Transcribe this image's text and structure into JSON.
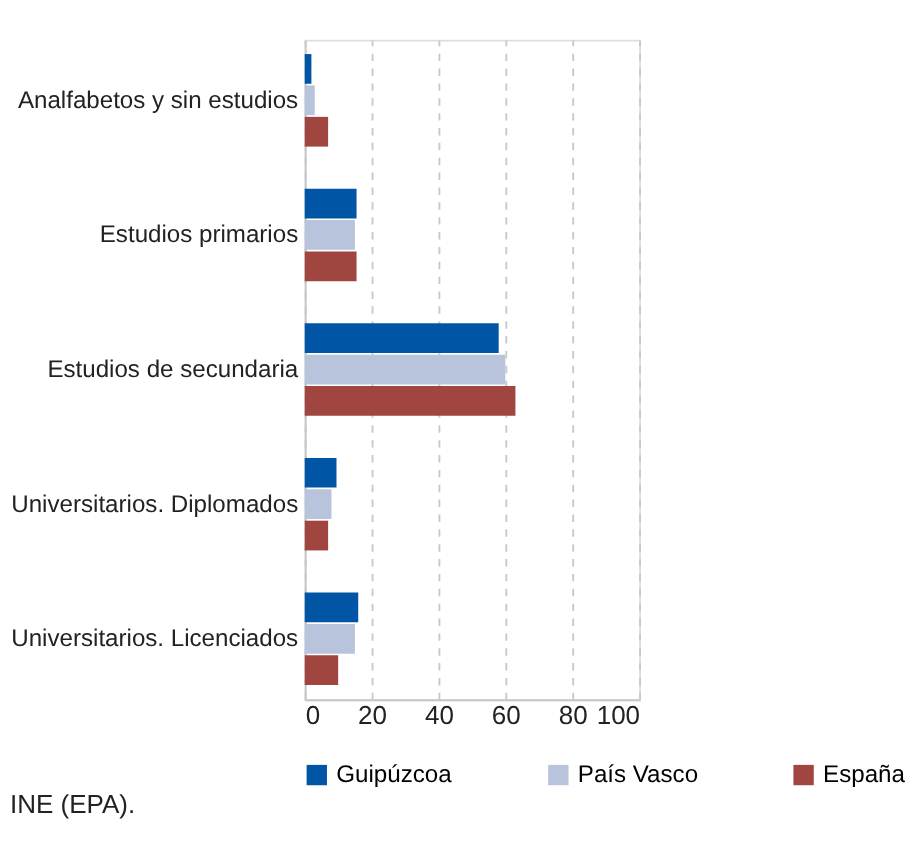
{
  "chart_data": {
    "type": "bar",
    "orientation": "horizontal",
    "categories": [
      "Analfabetos y sin estudios",
      "Estudios primarios",
      "Estudios de secundaria",
      "Universitarios. Diplomados",
      "Universitarios. Licenciados"
    ],
    "series": [
      {
        "name": "Guipúzcoa",
        "color": "#0055a4",
        "values": [
          2,
          15.5,
          58,
          9.5,
          16
        ]
      },
      {
        "name": "País Vasco",
        "color": "#b7c4dc",
        "values": [
          3,
          15,
          60,
          8,
          15
        ]
      },
      {
        "name": "España",
        "color": "#a0453f",
        "values": [
          7,
          15.5,
          63,
          7,
          10
        ]
      }
    ],
    "xlim": [
      0,
      100
    ],
    "xticks": [
      0,
      20,
      40,
      60,
      80,
      100
    ],
    "grid": "x",
    "legend": "bottom",
    "annotations": [
      "INE (EPA)."
    ]
  }
}
